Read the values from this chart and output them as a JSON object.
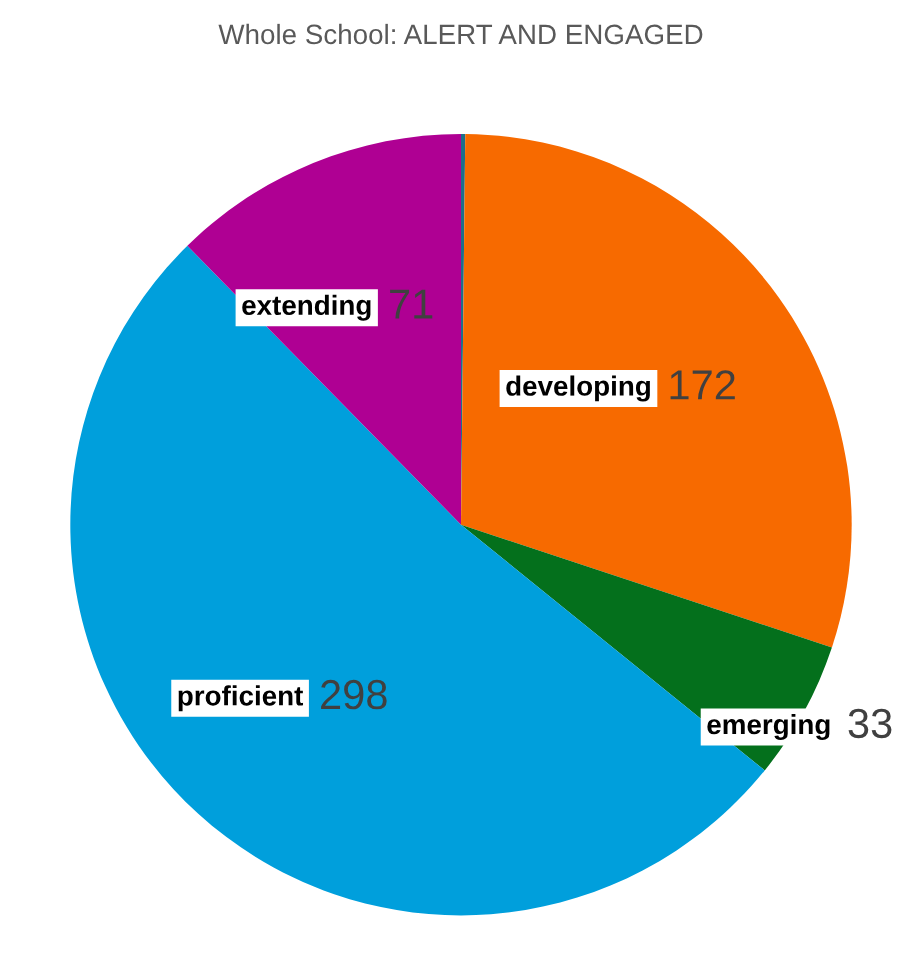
{
  "chart_data": {
    "type": "pie",
    "title": "Whole School: ALERT AND ENGAGED",
    "categories": [
      null,
      "developing",
      "emerging",
      "proficient",
      "extending"
    ],
    "values": [
      1,
      172,
      33,
      298,
      71
    ],
    "value_labels": [
      null,
      "172",
      "33",
      "298",
      "71"
    ],
    "colors": [
      "#1d6f8a",
      "#f76a00",
      "#04701c",
      "#009fdc",
      "#af0093"
    ]
  }
}
